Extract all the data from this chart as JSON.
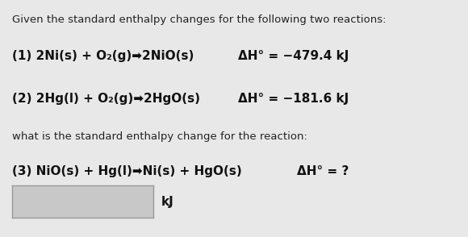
{
  "bg_color": "#e8e8e8",
  "title_text": "Given the standard enthalpy changes for the following two reactions:",
  "line1_left": "(1) 2Ni(s) + O₂(g)→–2NiO(s)",
  "line1_right": "ΔH° = -479.4 kJ",
  "line2_left": "(2) 2Hg(l) + O₂(g)→–2HgO(s)",
  "line2_right": "ΔH° = -181.6 kJ",
  "mid_text": "what is the standard enthalpy change for the reaction:",
  "line3_left": "(3) NiO(s) + Hg(l)→–Ni(s) + HgO(s)",
  "line3_right": "ΔH° = ?",
  "box_label": "kJ",
  "text_color": "#222222",
  "bold_color": "#111111",
  "box_bg": "#c8c8c8",
  "box_border": "#999999",
  "font_size_title": 9.5,
  "font_size_body": 11.0,
  "font_size_mid": 9.5
}
